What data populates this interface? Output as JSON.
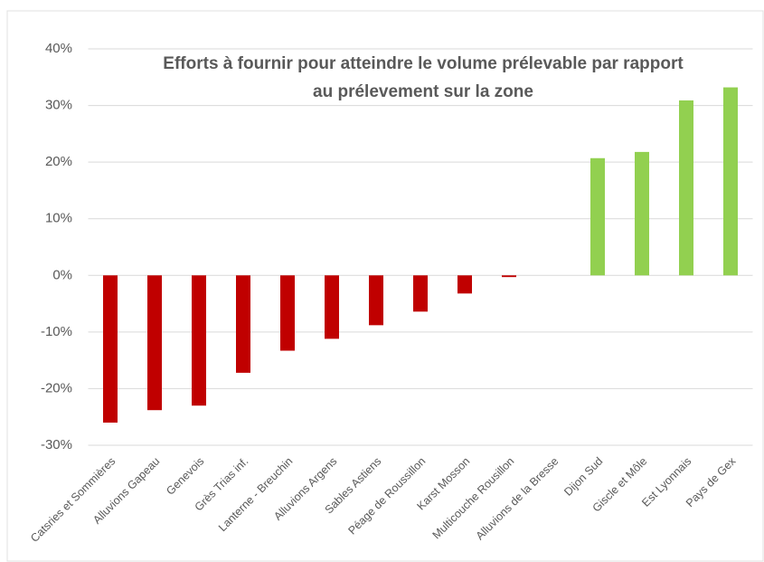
{
  "chart_data": {
    "type": "bar",
    "title": [
      "Efforts à fournir pour atteindre le volume prélevable par rapport",
      "au prélevement sur la zone"
    ],
    "categories": [
      "Catsries et Sommières",
      "Alluvions Gapeau",
      "Genevois",
      "Grès Trias inf.",
      "Lanterne - Breuchin",
      "Alluvions Argens",
      "Sables Astiens",
      "Péage de Roussillon",
      "Karst Mosson",
      "Multicouche Rousillon",
      "Alluvions de la Bresse",
      "Dijon Sud",
      "Giscle et Môle",
      "Est Lyonnais",
      "Pays de Gex"
    ],
    "values": [
      -26,
      -23.8,
      -23,
      -17.2,
      -13.3,
      -11.2,
      -8.8,
      -6.4,
      -3.2,
      -0.3,
      0,
      20.7,
      21.8,
      30.9,
      33.2
    ],
    "colors": [
      "#c00000",
      "#c00000",
      "#c00000",
      "#c00000",
      "#c00000",
      "#c00000",
      "#c00000",
      "#c00000",
      "#c00000",
      "#c00000",
      "#c00000",
      "#92d050",
      "#92d050",
      "#92d050",
      "#92d050"
    ],
    "ylim": [
      -30,
      40
    ],
    "yticks": [
      {
        "value": -30,
        "label": "-30%"
      },
      {
        "value": -20,
        "label": "-20%"
      },
      {
        "value": -10,
        "label": "-10%"
      },
      {
        "value": 0,
        "label": "0%"
      },
      {
        "value": 10,
        "label": "10%"
      },
      {
        "value": 20,
        "label": "20%"
      },
      {
        "value": 30,
        "label": "30%"
      },
      {
        "value": 40,
        "label": "40%"
      }
    ],
    "grid": true
  }
}
